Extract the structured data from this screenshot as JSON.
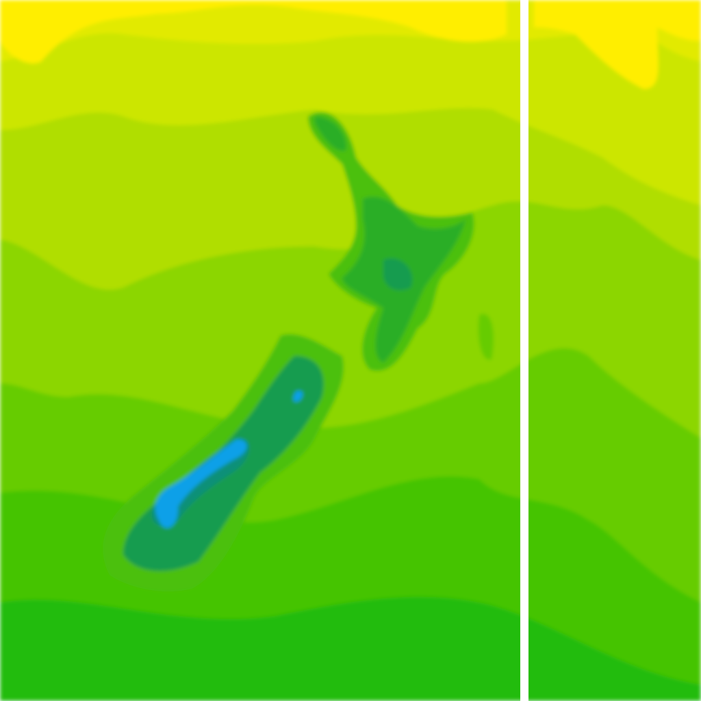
{
  "map": {
    "type": "contour-heatmap",
    "region": "New Zealand",
    "palette": {
      "band1": "#ffee00",
      "band2": "#e2ea00",
      "band3": "#cce600",
      "band4": "#b0de00",
      "band5": "#8cd600",
      "band6": "#66cc00",
      "band7": "#44c404",
      "band8": "#22bc10",
      "land1": "#4cc010",
      "land2": "#2cae28",
      "land3": "#159c50",
      "land4": "#0c9078",
      "peak": "#10a0e8"
    },
    "divider_color": "#ffffff"
  }
}
